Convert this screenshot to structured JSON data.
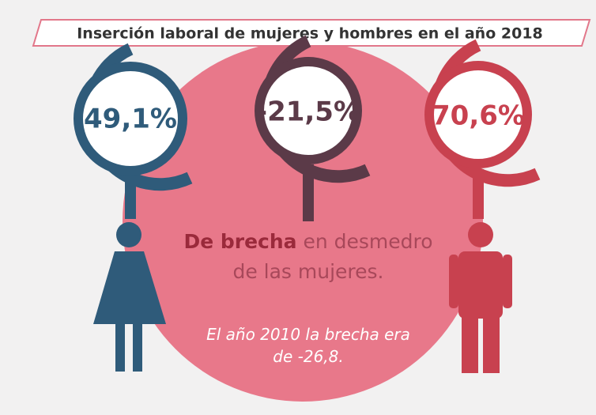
{
  "title": "Inserción laboral de mujeres y hombres en el año 2018",
  "indicators": [
    {
      "label": "49,1%"
    },
    {
      "label": "-21,5%"
    },
    {
      "label": "70,6%"
    }
  ],
  "note": {
    "bold": "De brecha",
    "line1": "en desmedro",
    "line2": "de las mujeres."
  },
  "footnote": [
    "El año 2010 la brecha era",
    "de -26,8."
  ]
}
